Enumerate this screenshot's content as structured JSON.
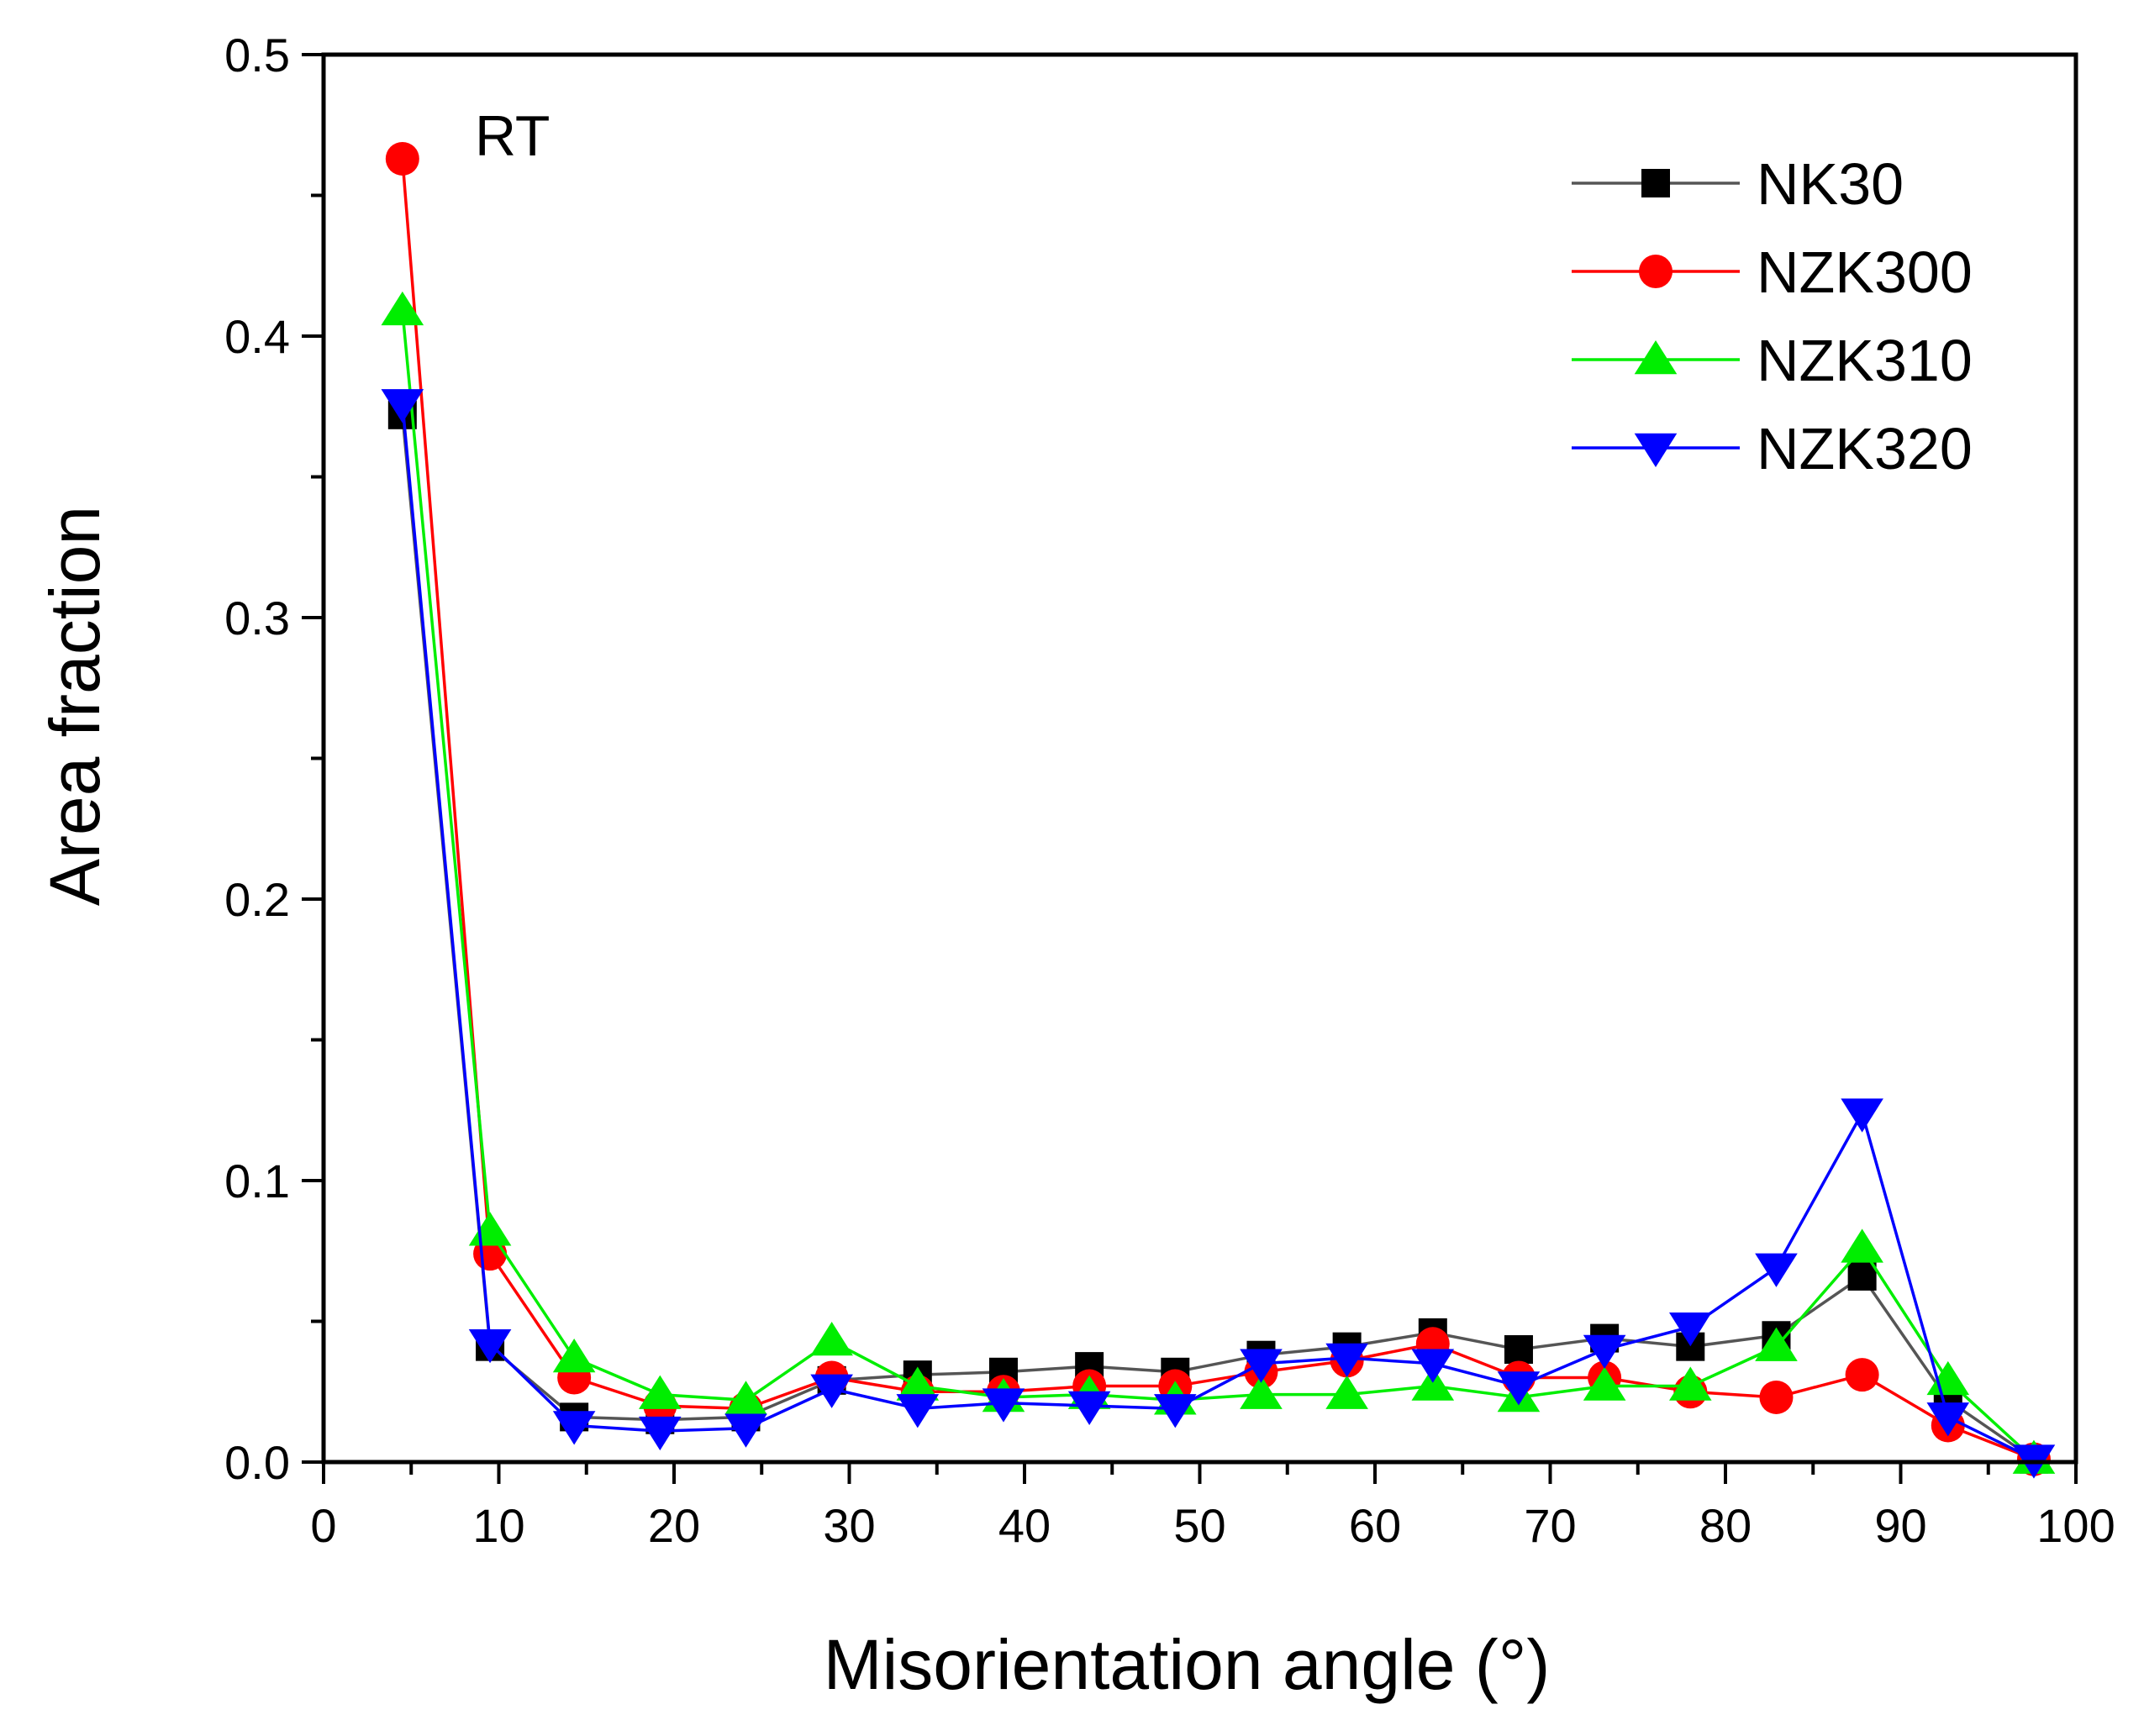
{
  "chart_data": {
    "type": "line",
    "title": "",
    "annotation": "RT",
    "xlabel": "Misorientation angle (°)",
    "ylabel": "Area fraction",
    "xlim": [
      0,
      100
    ],
    "ylim": [
      0,
      0.5
    ],
    "x_ticks": [
      0,
      10,
      20,
      30,
      40,
      50,
      60,
      70,
      80,
      90,
      100
    ],
    "x_tick_labels": [
      "0",
      "10",
      "20",
      "30",
      "40",
      "50",
      "60",
      "70",
      "80",
      "90",
      "100"
    ],
    "y_ticks": [
      0,
      0.1,
      0.2,
      0.3,
      0.4,
      0.5
    ],
    "y_tick_labels": [
      "0.0",
      "0.1",
      "0.2",
      "0.3",
      "0.4",
      "0.5"
    ],
    "legend_position": "top-right",
    "x": [
      4.5,
      9.5,
      14.3,
      19.2,
      24.1,
      29.0,
      33.9,
      38.8,
      43.7,
      48.6,
      53.5,
      58.4,
      63.3,
      68.2,
      73.1,
      78.0,
      82.9,
      87.8,
      92.7,
      97.6
    ],
    "series": [
      {
        "name": "NK30",
        "color": "#000000",
        "line_color": "#555555",
        "marker": "square",
        "values": [
          0.372,
          0.041,
          0.016,
          0.015,
          0.016,
          0.029,
          0.031,
          0.032,
          0.034,
          0.032,
          0.038,
          0.041,
          0.046,
          0.04,
          0.044,
          0.041,
          0.045,
          0.066,
          0.022,
          0.001
        ]
      },
      {
        "name": "NZK300",
        "color": "#ff0000",
        "line_color": "#ff0000",
        "marker": "circle",
        "values": [
          0.463,
          0.074,
          0.03,
          0.02,
          0.019,
          0.03,
          0.025,
          0.025,
          0.027,
          0.027,
          0.032,
          0.036,
          0.042,
          0.03,
          0.03,
          0.025,
          0.023,
          0.031,
          0.013,
          0.001
        ]
      },
      {
        "name": "NZK310",
        "color": "#00ee00",
        "line_color": "#00ee00",
        "marker": "triangle-up",
        "values": [
          0.409,
          0.082,
          0.037,
          0.024,
          0.022,
          0.043,
          0.027,
          0.023,
          0.024,
          0.022,
          0.024,
          0.024,
          0.027,
          0.023,
          0.027,
          0.027,
          0.041,
          0.076,
          0.029,
          0.001
        ]
      },
      {
        "name": "NZK320",
        "color": "#0000ff",
        "line_color": "#0000ff",
        "marker": "triangle-down",
        "values": [
          0.376,
          0.042,
          0.013,
          0.011,
          0.012,
          0.026,
          0.019,
          0.021,
          0.02,
          0.019,
          0.035,
          0.037,
          0.035,
          0.027,
          0.04,
          0.048,
          0.069,
          0.124,
          0.016,
          0.001
        ]
      }
    ]
  }
}
